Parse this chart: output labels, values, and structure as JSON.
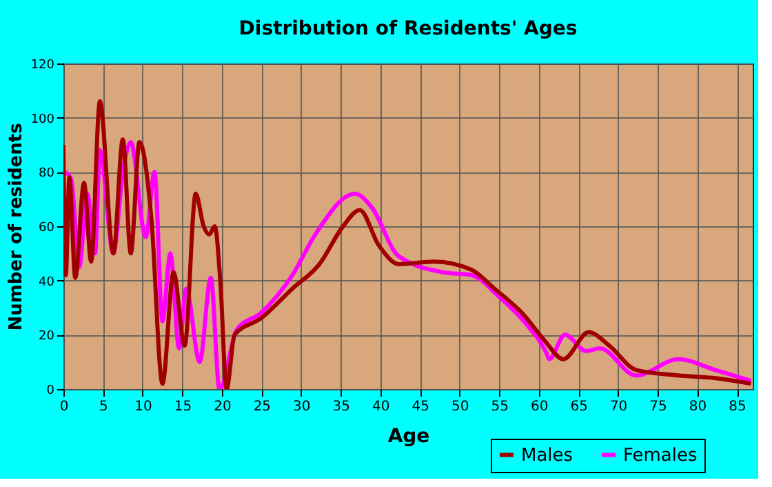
{
  "chart_data": {
    "type": "line",
    "title": "Distribution of Residents' Ages",
    "xlabel": "Age",
    "ylabel": "Number of residents",
    "xlim": [
      0,
      87
    ],
    "xticks": [
      0,
      5,
      10,
      15,
      20,
      25,
      30,
      35,
      40,
      45,
      50,
      55,
      60,
      65,
      70,
      75,
      80,
      85
    ],
    "ylim": [
      0,
      120
    ],
    "yticks": [
      0,
      20,
      40,
      60,
      80,
      100,
      120
    ],
    "grid": true,
    "legend": "bottom right",
    "line_style": "solid",
    "marker": "none",
    "series": [
      {
        "name": "Females",
        "color": "#ff00ff",
        "x": [
          0.3,
          1,
          2,
          3,
          4,
          4.6,
          6.3,
          7.5,
          8.5,
          10.4,
          11.5,
          12.5,
          13.5,
          14.6,
          15.5,
          17.2,
          18.6,
          19.7,
          21.9,
          24.9,
          28.9,
          31.8,
          36.8,
          38.9,
          42.3,
          48,
          51.5,
          55,
          58.4,
          61,
          61.3,
          63.3,
          66,
          67.7,
          72.3,
          77.6,
          82.3,
          86.8
        ],
        "values": [
          80,
          77,
          45,
          72,
          50,
          88,
          50,
          80,
          91,
          56,
          80,
          25,
          50,
          15,
          37,
          10,
          41,
          0,
          22,
          28,
          42,
          57,
          72,
          67,
          49,
          43,
          42,
          34,
          24,
          13,
          11,
          20,
          14,
          15,
          5,
          11,
          7,
          3
        ]
      },
      {
        "name": "Males",
        "color": "#a00000",
        "x": [
          0,
          0.3,
          0.75,
          1.5,
          2.6,
          3.5,
          4.6,
          6.3,
          7.5,
          8.5,
          9.6,
          11.1,
          12.5,
          13.9,
          15.3,
          16.7,
          17.7,
          18.4,
          19.1,
          19.8,
          20.6,
          21.6,
          24.9,
          28.9,
          32.3,
          35.3,
          37.4,
          39.8,
          42.4,
          46.8,
          51.5,
          54.4,
          57.9,
          60.7,
          63.1,
          66.3,
          68.9,
          72.3,
          77.6,
          82.3,
          86.8
        ],
        "values": [
          90,
          42,
          78,
          41,
          76,
          47,
          106,
          50,
          92,
          50,
          91,
          63,
          2,
          43,
          16,
          72,
          60,
          57,
          60,
          40,
          0,
          20,
          26,
          37,
          46,
          60,
          66,
          53,
          46,
          47,
          44,
          37,
          28,
          18,
          11,
          21,
          16,
          7,
          5,
          4,
          2
        ]
      }
    ]
  }
}
